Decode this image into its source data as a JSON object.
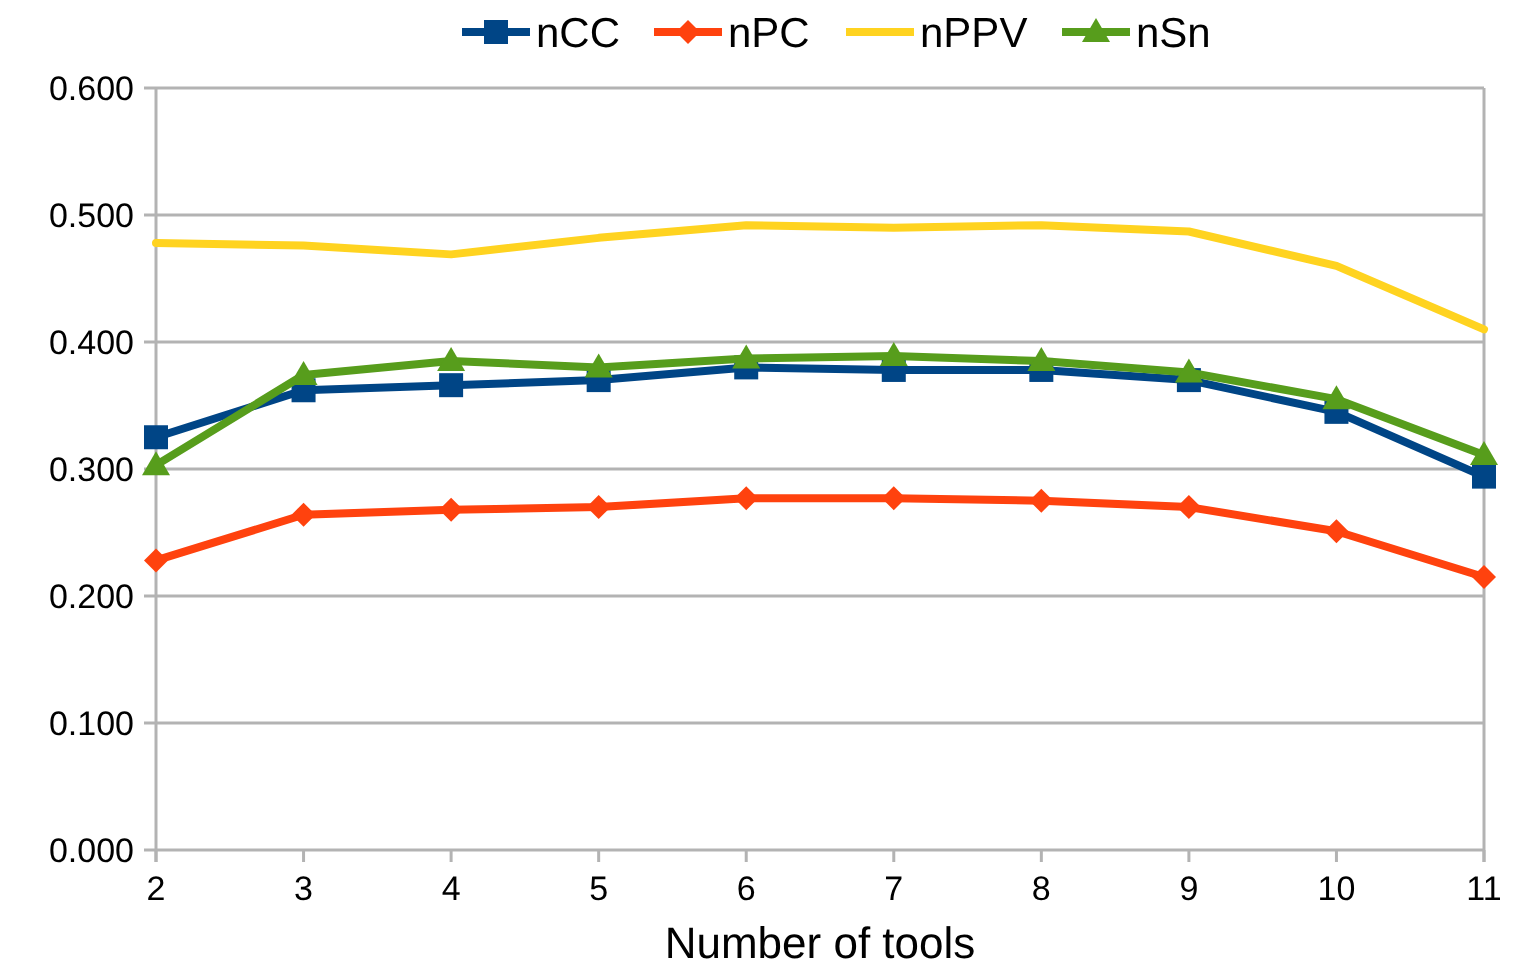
{
  "chart_data": {
    "type": "line",
    "xlabel": "Number of tools",
    "x": [
      2,
      3,
      4,
      5,
      6,
      7,
      8,
      9,
      10,
      11
    ],
    "xlim": [
      2,
      11
    ],
    "xticks": [
      2,
      3,
      4,
      5,
      6,
      7,
      8,
      9,
      10,
      11
    ],
    "ylim": [
      0,
      0.6
    ],
    "yticks": [
      {
        "value": 0,
        "label": "0.000"
      },
      {
        "value": 0.1,
        "label": "0.100"
      },
      {
        "value": 0.2,
        "label": "0.200"
      },
      {
        "value": 0.3,
        "label": "0.300"
      },
      {
        "value": 0.4,
        "label": "0.400"
      },
      {
        "value": 0.5,
        "label": "0.500"
      },
      {
        "value": 0.6,
        "label": "0.600"
      }
    ],
    "grid": "y",
    "legend": "top",
    "series": [
      {
        "name": "nCC",
        "color": "#004586",
        "marker": "square",
        "values": [
          0.325,
          0.362,
          0.366,
          0.37,
          0.38,
          0.378,
          0.378,
          0.37,
          0.345,
          0.294
        ]
      },
      {
        "name": "nPC",
        "color": "#ff420e",
        "marker": "diamond",
        "values": [
          0.228,
          0.264,
          0.268,
          0.27,
          0.277,
          0.277,
          0.275,
          0.27,
          0.251,
          0.215
        ]
      },
      {
        "name": "nPPV",
        "color": "#ffd320",
        "marker": "none",
        "values": [
          0.478,
          0.476,
          0.469,
          0.482,
          0.492,
          0.49,
          0.492,
          0.487,
          0.46,
          0.41
        ]
      },
      {
        "name": "nSn",
        "color": "#579d1c",
        "marker": "triangle",
        "values": [
          0.303,
          0.374,
          0.385,
          0.38,
          0.387,
          0.389,
          0.385,
          0.376,
          0.355,
          0.311
        ]
      }
    ]
  }
}
